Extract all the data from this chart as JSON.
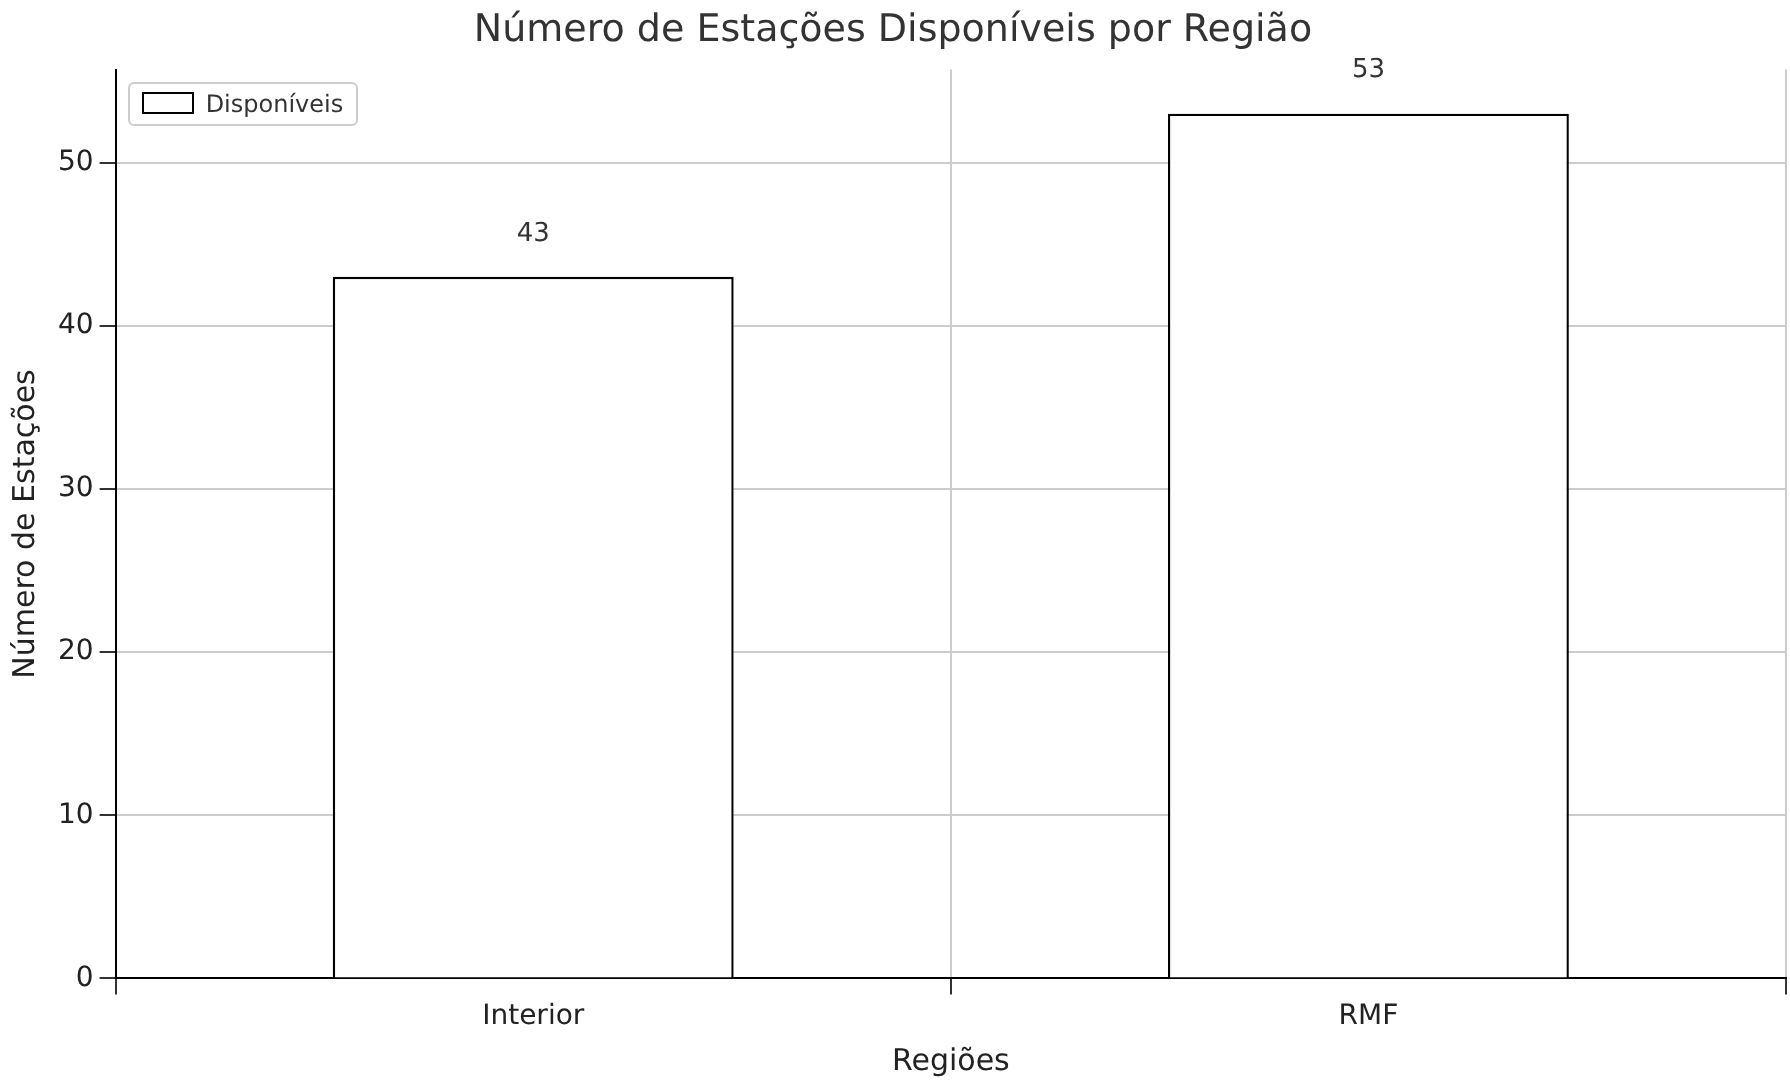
{
  "chart_data": {
    "type": "bar",
    "title": "Número de Estações Disponíveis por Região",
    "xlabel": "Regiões",
    "ylabel": "Número de Estações",
    "categories": [
      "Interior",
      "RMF"
    ],
    "series": [
      {
        "name": "Disponíveis",
        "color": "#ffffff",
        "values": [
          43,
          53
        ]
      }
    ],
    "ylim": [
      0,
      55.7
    ],
    "yticks": [
      0,
      10,
      20,
      30,
      40,
      50
    ],
    "grid": true,
    "legend": "top left",
    "data_labels": true
  }
}
